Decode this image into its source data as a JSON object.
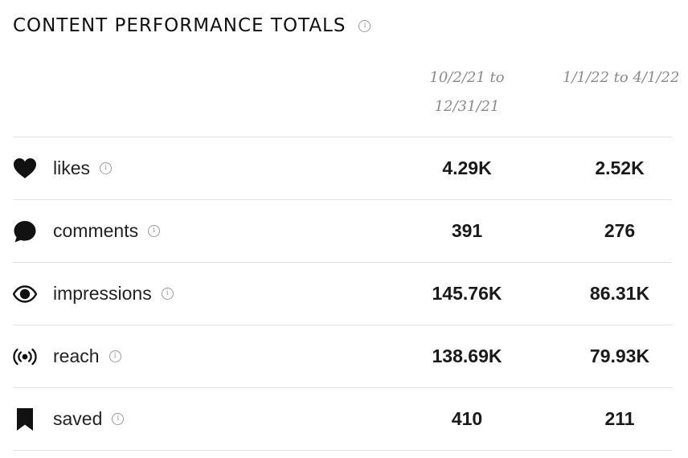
{
  "title": "CONTENT PERFORMANCE TOTALS",
  "info_glyph": "i",
  "periods": {
    "p1_line1": "10/2/21 to",
    "p1_line2": "12/31/21",
    "p2": "1/1/22 to 4/1/22"
  },
  "rows": [
    {
      "label": "likes",
      "icon": "heart-icon",
      "v1": "4.29K",
      "v2": "2.52K"
    },
    {
      "label": "comments",
      "icon": "speech-bubble-icon",
      "v1": "391",
      "v2": "276"
    },
    {
      "label": "impressions",
      "icon": "eye-icon",
      "v1": "145.76K",
      "v2": "86.31K"
    },
    {
      "label": "reach",
      "icon": "broadcast-icon",
      "v1": "138.69K",
      "v2": "79.93K"
    },
    {
      "label": "saved",
      "icon": "bookmark-icon",
      "v1": "410",
      "v2": "211"
    }
  ]
}
